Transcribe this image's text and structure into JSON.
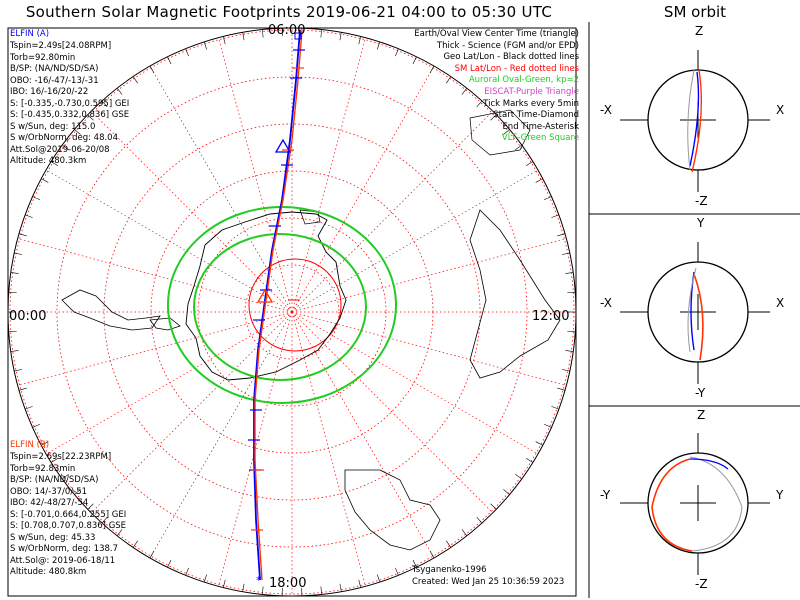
{
  "title": "Southern Solar Magnetic Footprints 2019-06-21 04:00 to 05:30 UTC",
  "orbit_title": "SM orbit",
  "hour_labels": {
    "top": "06:00",
    "left": "00:00",
    "right": "12:00",
    "bottom": "18:00"
  },
  "elfin_a": {
    "name": "ELFIN (A)",
    "color": "#0000ff",
    "lines": [
      "Tspin=2.49s[24.08RPM]",
      "Torb=92.80min",
      "B/SP: (NA/ND/SD/SA)",
      "OBO: -16/-47/-13/-31",
      "IBO: 16/-16/20/-22",
      "S: [-0.335,-0.730,0.595] GEI",
      "S: [-0.435,0.332,0.836] GSE",
      "S w/Sun, deg: 115.0",
      "S w/OrbNorm, deg: 48.04",
      "Att.Sol@2019-06-20/08",
      "Altitude: 480.3km"
    ]
  },
  "elfin_b": {
    "name": "ELFIN (B)",
    "color": "#ff3300",
    "lines": [
      "Tspin=2.69s[22.23RPM]",
      "Torb=92.83min",
      "B/SP: (NA/ND/SD/SA)",
      "OBO: 14/-37/0/-51",
      "IBO: 42/-48/27/-54",
      "S: [-0.701,0.664,0.255] GEI",
      "S: [0.708,0.707,0.836] GSE",
      "S w/Sun, deg: 45.33",
      "S w/OrbNorm, deg: 138.7",
      "Att.Sol@: 2019-06-18/11",
      "Altitude: 480.8km"
    ]
  },
  "legend": [
    {
      "text": "Earth/Oval View Center Time (triangle)",
      "color": "#000000"
    },
    {
      "text": "Thick - Science (FGM and/or EPD)",
      "color": "#000000"
    },
    {
      "text": "Geo Lat/Lon - Black dotted lines",
      "color": "#000000"
    },
    {
      "text": "SM Lat/Lon - Red dotted lines",
      "color": "#ff0000"
    },
    {
      "text": "Auroral Oval-Green, kp=2",
      "color": "#22cc22"
    },
    {
      "text": "EISCAT-Purple Triangle",
      "color": "#cc44cc"
    },
    {
      "text": "Tick Marks every 5min",
      "color": "#000000"
    },
    {
      "text": "Start Time-Diamond",
      "color": "#000000"
    },
    {
      "text": "End Time-Asterisk",
      "color": "#000000"
    },
    {
      "text": "VLF-Green Square",
      "color": "#22cc22"
    }
  ],
  "credit": "Tsyganenko-1996",
  "created": "Created: Wed Jan 25 10:36:59 2023",
  "panels": [
    {
      "top": "Z",
      "bottom": "-Z",
      "left": "-X",
      "right": "X"
    },
    {
      "top": "Y",
      "bottom": "-Y",
      "left": "-X",
      "right": "X"
    },
    {
      "top": "Z",
      "bottom": "-Z",
      "left": "-Y",
      "right": "Y"
    }
  ],
  "chart_data": {
    "type": "scatter",
    "title": "Southern Solar Magnetic Footprints 2019-06-21 04:00 to 05:30 UTC",
    "projection": "polar, southern hemisphere, SM coordinates",
    "oval_kp": 2,
    "series": [
      {
        "name": "ELFIN (A)",
        "color": "#0000ff"
      },
      {
        "name": "ELFIN (B)",
        "color": "#ff3300"
      }
    ]
  }
}
